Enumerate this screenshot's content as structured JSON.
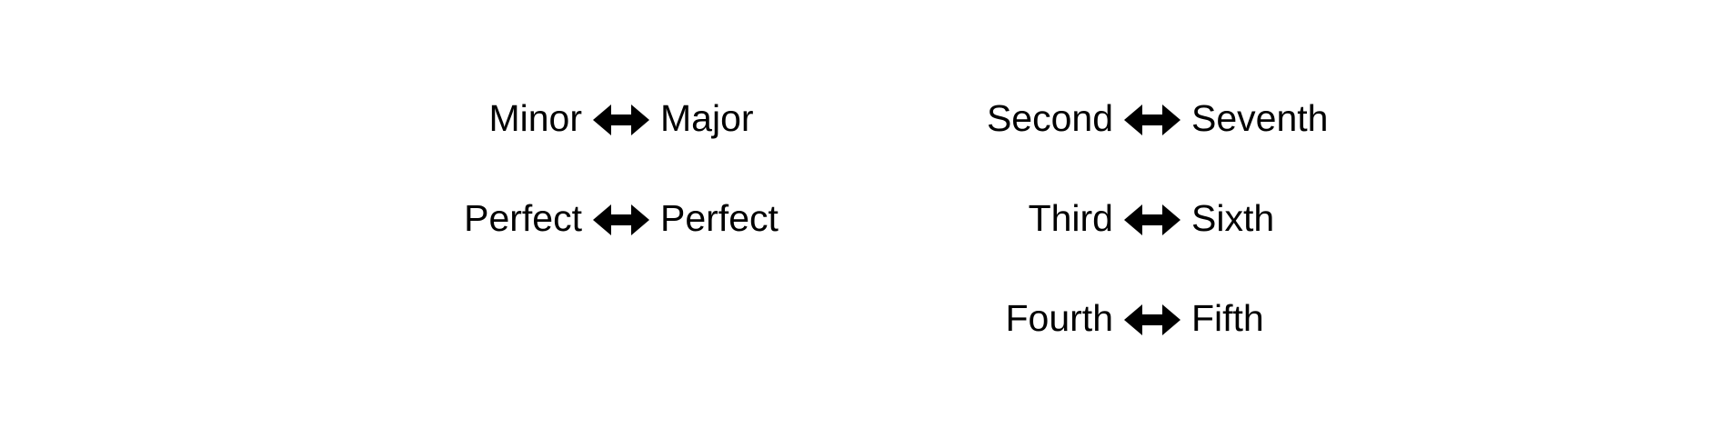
{
  "quality_pairs": [
    {
      "left": "Minor",
      "right": "Major"
    },
    {
      "left": "Perfect",
      "right": "Perfect"
    }
  ],
  "number_pairs": [
    {
      "left": "Second",
      "right": "Seventh"
    },
    {
      "left": "Third",
      "right": "Sixth"
    },
    {
      "left": "Fourth",
      "right": "Fifth"
    }
  ],
  "icons": {
    "connector": "double-headed-arrow-icon"
  },
  "colors": {
    "text": "#000000",
    "arrow": "#000000",
    "background": "#ffffff"
  }
}
